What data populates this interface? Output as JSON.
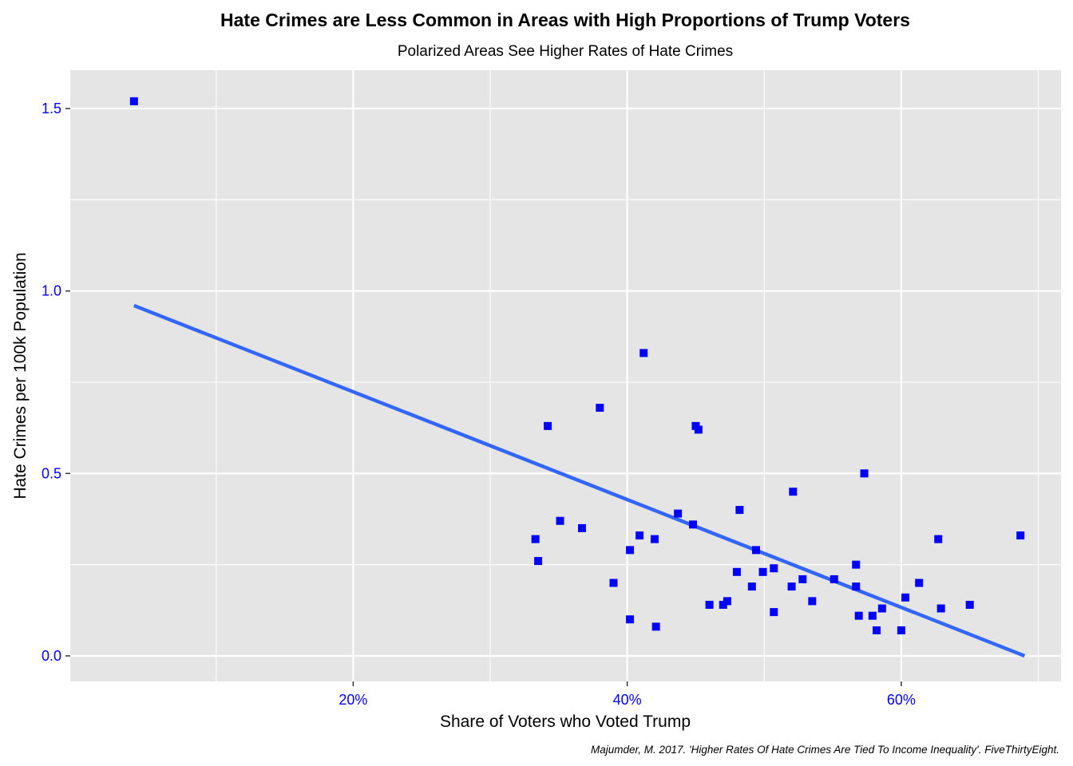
{
  "chart_data": {
    "type": "scatter",
    "title": "Hate Crimes are Less Common in Areas with High Proportions of Trump Voters",
    "subtitle": "Polarized Areas See Higher Rates of Hate Crimes",
    "xlabel": "Share of Voters who Voted Trump",
    "ylabel": "Hate Crimes per 100k Population",
    "caption": "Majumder, M. 2017. 'Higher Rates Of Hate Crimes Are Tied To Income Inequality'. FiveThirtyEight.",
    "xlim": [
      0.0,
      0.7
    ],
    "ylim": [
      -0.07,
      1.6
    ],
    "x_ticks": [
      {
        "value": 0.2,
        "label": "20%"
      },
      {
        "value": 0.4,
        "label": "40%"
      },
      {
        "value": 0.6,
        "label": "60%"
      }
    ],
    "x_minor_ticks": [
      0.1,
      0.3,
      0.5,
      0.7
    ],
    "y_ticks": [
      {
        "value": 0.0,
        "label": "0.0"
      },
      {
        "value": 0.5,
        "label": "0.5"
      },
      {
        "value": 1.0,
        "label": "1.0"
      },
      {
        "value": 1.5,
        "label": "1.5"
      }
    ],
    "y_minor_ticks": [
      0.25,
      0.75,
      1.25
    ],
    "grid": true,
    "colors": {
      "points": "#0000ff",
      "trend": "#3366ff",
      "panel": "#e5e5e5",
      "grid": "#ffffff"
    },
    "trend_line": {
      "x": [
        0.04,
        0.69
      ],
      "y": [
        0.96,
        0.0
      ]
    },
    "points": [
      {
        "x": 0.04,
        "y": 1.52
      },
      {
        "x": 0.333,
        "y": 0.32
      },
      {
        "x": 0.335,
        "y": 0.26
      },
      {
        "x": 0.342,
        "y": 0.63
      },
      {
        "x": 0.351,
        "y": 0.37
      },
      {
        "x": 0.367,
        "y": 0.35
      },
      {
        "x": 0.38,
        "y": 0.68
      },
      {
        "x": 0.39,
        "y": 0.2
      },
      {
        "x": 0.402,
        "y": 0.29
      },
      {
        "x": 0.402,
        "y": 0.1
      },
      {
        "x": 0.409,
        "y": 0.33
      },
      {
        "x": 0.412,
        "y": 0.83
      },
      {
        "x": 0.42,
        "y": 0.32
      },
      {
        "x": 0.421,
        "y": 0.08
      },
      {
        "x": 0.437,
        "y": 0.39
      },
      {
        "x": 0.448,
        "y": 0.36
      },
      {
        "x": 0.45,
        "y": 0.63
      },
      {
        "x": 0.452,
        "y": 0.62
      },
      {
        "x": 0.46,
        "y": 0.14
      },
      {
        "x": 0.47,
        "y": 0.14
      },
      {
        "x": 0.473,
        "y": 0.15
      },
      {
        "x": 0.48,
        "y": 0.23
      },
      {
        "x": 0.482,
        "y": 0.4
      },
      {
        "x": 0.491,
        "y": 0.19
      },
      {
        "x": 0.494,
        "y": 0.29
      },
      {
        "x": 0.499,
        "y": 0.23
      },
      {
        "x": 0.507,
        "y": 0.12
      },
      {
        "x": 0.507,
        "y": 0.24
      },
      {
        "x": 0.52,
        "y": 0.19
      },
      {
        "x": 0.521,
        "y": 0.45
      },
      {
        "x": 0.528,
        "y": 0.21
      },
      {
        "x": 0.535,
        "y": 0.15
      },
      {
        "x": 0.551,
        "y": 0.21
      },
      {
        "x": 0.567,
        "y": 0.25
      },
      {
        "x": 0.567,
        "y": 0.19
      },
      {
        "x": 0.569,
        "y": 0.11
      },
      {
        "x": 0.573,
        "y": 0.5
      },
      {
        "x": 0.579,
        "y": 0.11
      },
      {
        "x": 0.582,
        "y": 0.07
      },
      {
        "x": 0.586,
        "y": 0.13
      },
      {
        "x": 0.6,
        "y": 0.07
      },
      {
        "x": 0.603,
        "y": 0.16
      },
      {
        "x": 0.613,
        "y": 0.2
      },
      {
        "x": 0.627,
        "y": 0.32
      },
      {
        "x": 0.629,
        "y": 0.13
      },
      {
        "x": 0.65,
        "y": 0.14
      },
      {
        "x": 0.687,
        "y": 0.33
      }
    ]
  }
}
